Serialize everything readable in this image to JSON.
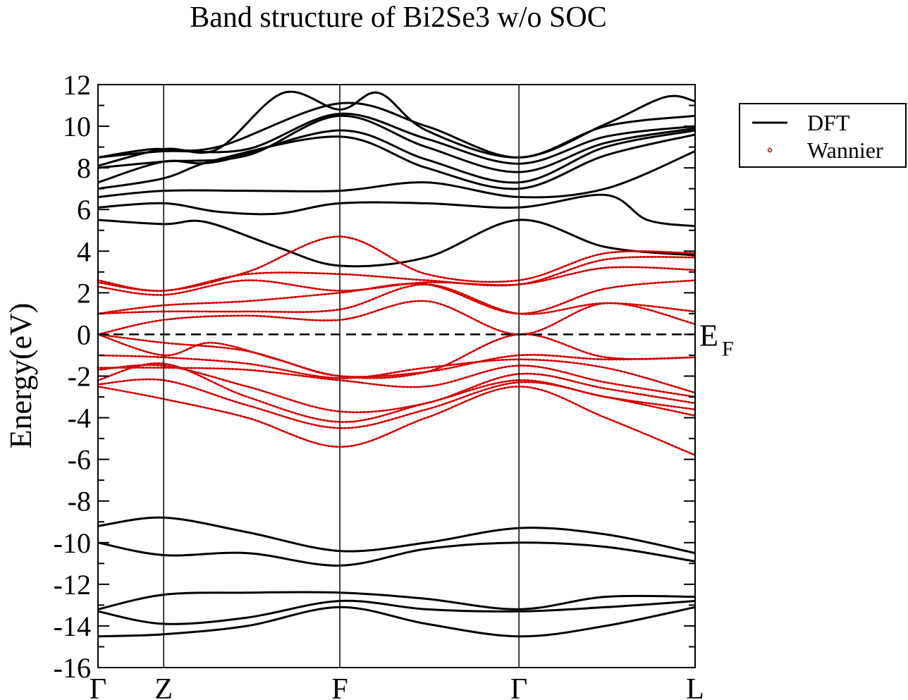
{
  "chart_data": {
    "type": "line",
    "title": "Band structure of Bi2Se3 w/o SOC",
    "ylabel": "Energy(eV)",
    "xlabel": "",
    "ylim": [
      -16,
      12
    ],
    "y_ticks": [
      "12",
      "10",
      "8",
      "6",
      "4",
      "2",
      "0",
      "-2",
      "-4",
      "-6",
      "-8",
      "-10",
      "-12",
      "-14",
      "-16"
    ],
    "x_ticks": [
      {
        "label": "Γ",
        "pos": 0.0
      },
      {
        "label": "Z",
        "pos": 0.11
      },
      {
        "label": "F",
        "pos": 0.405
      },
      {
        "label": "Γ",
        "pos": 0.705
      },
      {
        "label": "L",
        "pos": 1.0
      }
    ],
    "fermi": {
      "label": "E",
      "sub": "F",
      "value": 0
    },
    "grid": false,
    "legend_position": "top-right",
    "series": [
      {
        "name": "DFT",
        "style": "line",
        "color": "#000000"
      },
      {
        "name": "Wannier",
        "style": "points",
        "color": "#d40000"
      }
    ],
    "dft_bands": [
      [
        [
          0,
          -14.5
        ],
        [
          0.11,
          -14.4
        ],
        [
          0.25,
          -14.0
        ],
        [
          0.405,
          -13.1
        ],
        [
          0.55,
          -13.9
        ],
        [
          0.705,
          -14.5
        ],
        [
          0.85,
          -14.0
        ],
        [
          1,
          -13.1
        ]
      ],
      [
        [
          0,
          -13.3
        ],
        [
          0.11,
          -13.9
        ],
        [
          0.25,
          -13.6
        ],
        [
          0.405,
          -12.8
        ],
        [
          0.55,
          -13.2
        ],
        [
          0.705,
          -13.3
        ],
        [
          0.85,
          -13.1
        ],
        [
          1,
          -12.8
        ]
      ],
      [
        [
          0,
          -13.2
        ],
        [
          0.11,
          -12.5
        ],
        [
          0.25,
          -12.4
        ],
        [
          0.405,
          -12.4
        ],
        [
          0.55,
          -12.7
        ],
        [
          0.705,
          -13.2
        ],
        [
          0.85,
          -12.6
        ],
        [
          1,
          -12.6
        ]
      ],
      [
        [
          0,
          -10.0
        ],
        [
          0.11,
          -10.6
        ],
        [
          0.25,
          -10.5
        ],
        [
          0.405,
          -11.1
        ],
        [
          0.55,
          -10.3
        ],
        [
          0.705,
          -10.0
        ],
        [
          0.85,
          -10.2
        ],
        [
          1,
          -10.9
        ]
      ],
      [
        [
          0,
          -9.2
        ],
        [
          0.11,
          -8.8
        ],
        [
          0.25,
          -9.5
        ],
        [
          0.405,
          -10.4
        ],
        [
          0.55,
          -10.0
        ],
        [
          0.705,
          -9.3
        ],
        [
          0.85,
          -9.6
        ],
        [
          1,
          -10.5
        ]
      ],
      [
        [
          0,
          5.5
        ],
        [
          0.11,
          5.3
        ],
        [
          0.18,
          5.4
        ],
        [
          0.3,
          4.2
        ],
        [
          0.405,
          3.3
        ],
        [
          0.55,
          3.7
        ],
        [
          0.705,
          5.5
        ],
        [
          0.85,
          4.2
        ],
        [
          1,
          3.8
        ]
      ],
      [
        [
          0,
          6.1
        ],
        [
          0.11,
          6.3
        ],
        [
          0.2,
          5.9
        ],
        [
          0.3,
          5.8
        ],
        [
          0.405,
          6.3
        ],
        [
          0.55,
          6.3
        ],
        [
          0.705,
          6.1
        ],
        [
          0.85,
          6.7
        ],
        [
          0.92,
          5.5
        ],
        [
          1,
          5.2
        ]
      ],
      [
        [
          0,
          6.6
        ],
        [
          0.11,
          6.9
        ],
        [
          0.25,
          6.9
        ],
        [
          0.405,
          6.9
        ],
        [
          0.55,
          7.3
        ],
        [
          0.705,
          6.6
        ],
        [
          0.85,
          7.0
        ],
        [
          1,
          8.8
        ]
      ],
      [
        [
          0,
          7.0
        ],
        [
          0.11,
          7.5
        ],
        [
          0.2,
          8.4
        ],
        [
          0.405,
          9.5
        ],
        [
          0.55,
          8.0
        ],
        [
          0.705,
          7.0
        ],
        [
          0.85,
          8.6
        ],
        [
          1,
          9.6
        ]
      ],
      [
        [
          0,
          7.3
        ],
        [
          0.11,
          8.3
        ],
        [
          0.2,
          8.3
        ],
        [
          0.405,
          9.8
        ],
        [
          0.55,
          8.4
        ],
        [
          0.705,
          7.3
        ],
        [
          0.85,
          9.0
        ],
        [
          1,
          9.8
        ]
      ],
      [
        [
          0,
          8.0
        ],
        [
          0.11,
          8.3
        ],
        [
          0.25,
          8.6
        ],
        [
          0.405,
          10.5
        ],
        [
          0.55,
          9.0
        ],
        [
          0.705,
          7.8
        ],
        [
          0.85,
          9.2
        ],
        [
          1,
          9.9
        ]
      ],
      [
        [
          0,
          8.5
        ],
        [
          0.11,
          8.8
        ],
        [
          0.25,
          8.9
        ],
        [
          0.405,
          10.6
        ],
        [
          0.55,
          9.4
        ],
        [
          0.705,
          8.2
        ],
        [
          0.85,
          9.5
        ],
        [
          1,
          10.0
        ]
      ],
      [
        [
          0,
          8.1
        ],
        [
          0.11,
          8.9
        ],
        [
          0.2,
          8.9
        ],
        [
          0.31,
          11.6
        ],
        [
          0.405,
          10.8
        ],
        [
          0.47,
          11.6
        ],
        [
          0.55,
          9.8
        ],
        [
          0.705,
          8.5
        ],
        [
          0.85,
          10.0
        ],
        [
          1,
          10.5
        ]
      ],
      [
        [
          0,
          8.5
        ],
        [
          0.09,
          8.9
        ],
        [
          0.2,
          9.0
        ],
        [
          0.405,
          11.1
        ],
        [
          0.55,
          10.0
        ],
        [
          0.705,
          8.5
        ],
        [
          0.85,
          10.1
        ],
        [
          0.95,
          11.4
        ],
        [
          1,
          11.2
        ]
      ]
    ],
    "wannier_bands": [
      [
        [
          0,
          -2.5
        ],
        [
          0.11,
          -3.1
        ],
        [
          0.25,
          -4.0
        ],
        [
          0.405,
          -5.4
        ],
        [
          0.55,
          -4.0
        ],
        [
          0.705,
          -2.5
        ],
        [
          0.85,
          -4.0
        ],
        [
          1,
          -5.8
        ]
      ],
      [
        [
          0,
          -2.4
        ],
        [
          0.11,
          -2.2
        ],
        [
          0.25,
          -3.4
        ],
        [
          0.405,
          -4.5
        ],
        [
          0.55,
          -3.6
        ],
        [
          0.705,
          -2.3
        ],
        [
          0.85,
          -3.0
        ],
        [
          1,
          -3.9
        ]
      ],
      [
        [
          0,
          -2.2
        ],
        [
          0.11,
          -1.4
        ],
        [
          0.25,
          -3.0
        ],
        [
          0.405,
          -4.2
        ],
        [
          0.55,
          -3.3
        ],
        [
          0.705,
          -2.2
        ],
        [
          0.85,
          -3.0
        ],
        [
          1,
          -3.6
        ]
      ],
      [
        [
          0,
          -1.7
        ],
        [
          0.11,
          -1.5
        ],
        [
          0.25,
          -2.5
        ],
        [
          0.405,
          -3.7
        ],
        [
          0.55,
          -3.3
        ],
        [
          0.705,
          -1.9
        ],
        [
          0.85,
          -2.6
        ],
        [
          1,
          -3.3
        ]
      ],
      [
        [
          0,
          -1.6
        ],
        [
          0.11,
          -1.6
        ],
        [
          0.25,
          -1.7
        ],
        [
          0.405,
          -2.2
        ],
        [
          0.55,
          -2.5
        ],
        [
          0.705,
          -1.5
        ],
        [
          0.85,
          -2.3
        ],
        [
          1,
          -3.0
        ]
      ],
      [
        [
          0,
          -1.0
        ],
        [
          0.11,
          -1.1
        ],
        [
          0.25,
          -1.4
        ],
        [
          0.405,
          -2.1
        ],
        [
          0.55,
          -1.6
        ],
        [
          0.705,
          -1.2
        ],
        [
          0.85,
          -1.6
        ],
        [
          1,
          -2.8
        ]
      ],
      [
        [
          0,
          0.0
        ],
        [
          0.11,
          -1.0
        ],
        [
          0.19,
          -0.4
        ],
        [
          0.3,
          -1.2
        ],
        [
          0.405,
          -2.0
        ],
        [
          0.55,
          -1.8
        ],
        [
          0.705,
          -1.0
        ],
        [
          0.85,
          -1.2
        ],
        [
          1,
          -1.1
        ]
      ],
      [
        [
          0,
          0.0
        ],
        [
          0.11,
          -0.4
        ],
        [
          0.25,
          -0.8
        ],
        [
          0.405,
          -2.0
        ],
        [
          0.55,
          -1.8
        ],
        [
          0.705,
          0.0
        ],
        [
          0.85,
          -1.1
        ],
        [
          1,
          -1.1
        ]
      ],
      [
        [
          0,
          0.0
        ],
        [
          0.11,
          0.7
        ],
        [
          0.25,
          0.9
        ],
        [
          0.405,
          0.7
        ],
        [
          0.55,
          1.6
        ],
        [
          0.705,
          0.0
        ],
        [
          0.85,
          1.5
        ],
        [
          1,
          0.5
        ]
      ],
      [
        [
          0,
          1.0
        ],
        [
          0.11,
          1.1
        ],
        [
          0.25,
          1.1
        ],
        [
          0.405,
          1.2
        ],
        [
          0.55,
          2.4
        ],
        [
          0.705,
          1.0
        ],
        [
          0.85,
          1.5
        ],
        [
          1,
          1.1
        ]
      ],
      [
        [
          0,
          1.0
        ],
        [
          0.11,
          1.4
        ],
        [
          0.25,
          1.6
        ],
        [
          0.405,
          2.0
        ],
        [
          0.55,
          2.4
        ],
        [
          0.705,
          1.0
        ],
        [
          0.85,
          2.2
        ],
        [
          1,
          2.6
        ]
      ],
      [
        [
          0,
          2.3
        ],
        [
          0.11,
          1.9
        ],
        [
          0.25,
          2.6
        ],
        [
          0.405,
          2.1
        ],
        [
          0.55,
          2.5
        ],
        [
          0.705,
          2.4
        ],
        [
          0.85,
          3.2
        ],
        [
          1,
          3.1
        ]
      ],
      [
        [
          0,
          2.5
        ],
        [
          0.11,
          2.1
        ],
        [
          0.25,
          2.9
        ],
        [
          0.405,
          2.9
        ],
        [
          0.55,
          2.6
        ],
        [
          0.705,
          2.4
        ],
        [
          0.85,
          3.6
        ],
        [
          1,
          3.7
        ]
      ],
      [
        [
          0,
          2.6
        ],
        [
          0.11,
          2.1
        ],
        [
          0.25,
          3.0
        ],
        [
          0.405,
          4.7
        ],
        [
          0.55,
          2.9
        ],
        [
          0.705,
          2.6
        ],
        [
          0.85,
          3.9
        ],
        [
          1,
          3.9
        ]
      ]
    ]
  }
}
